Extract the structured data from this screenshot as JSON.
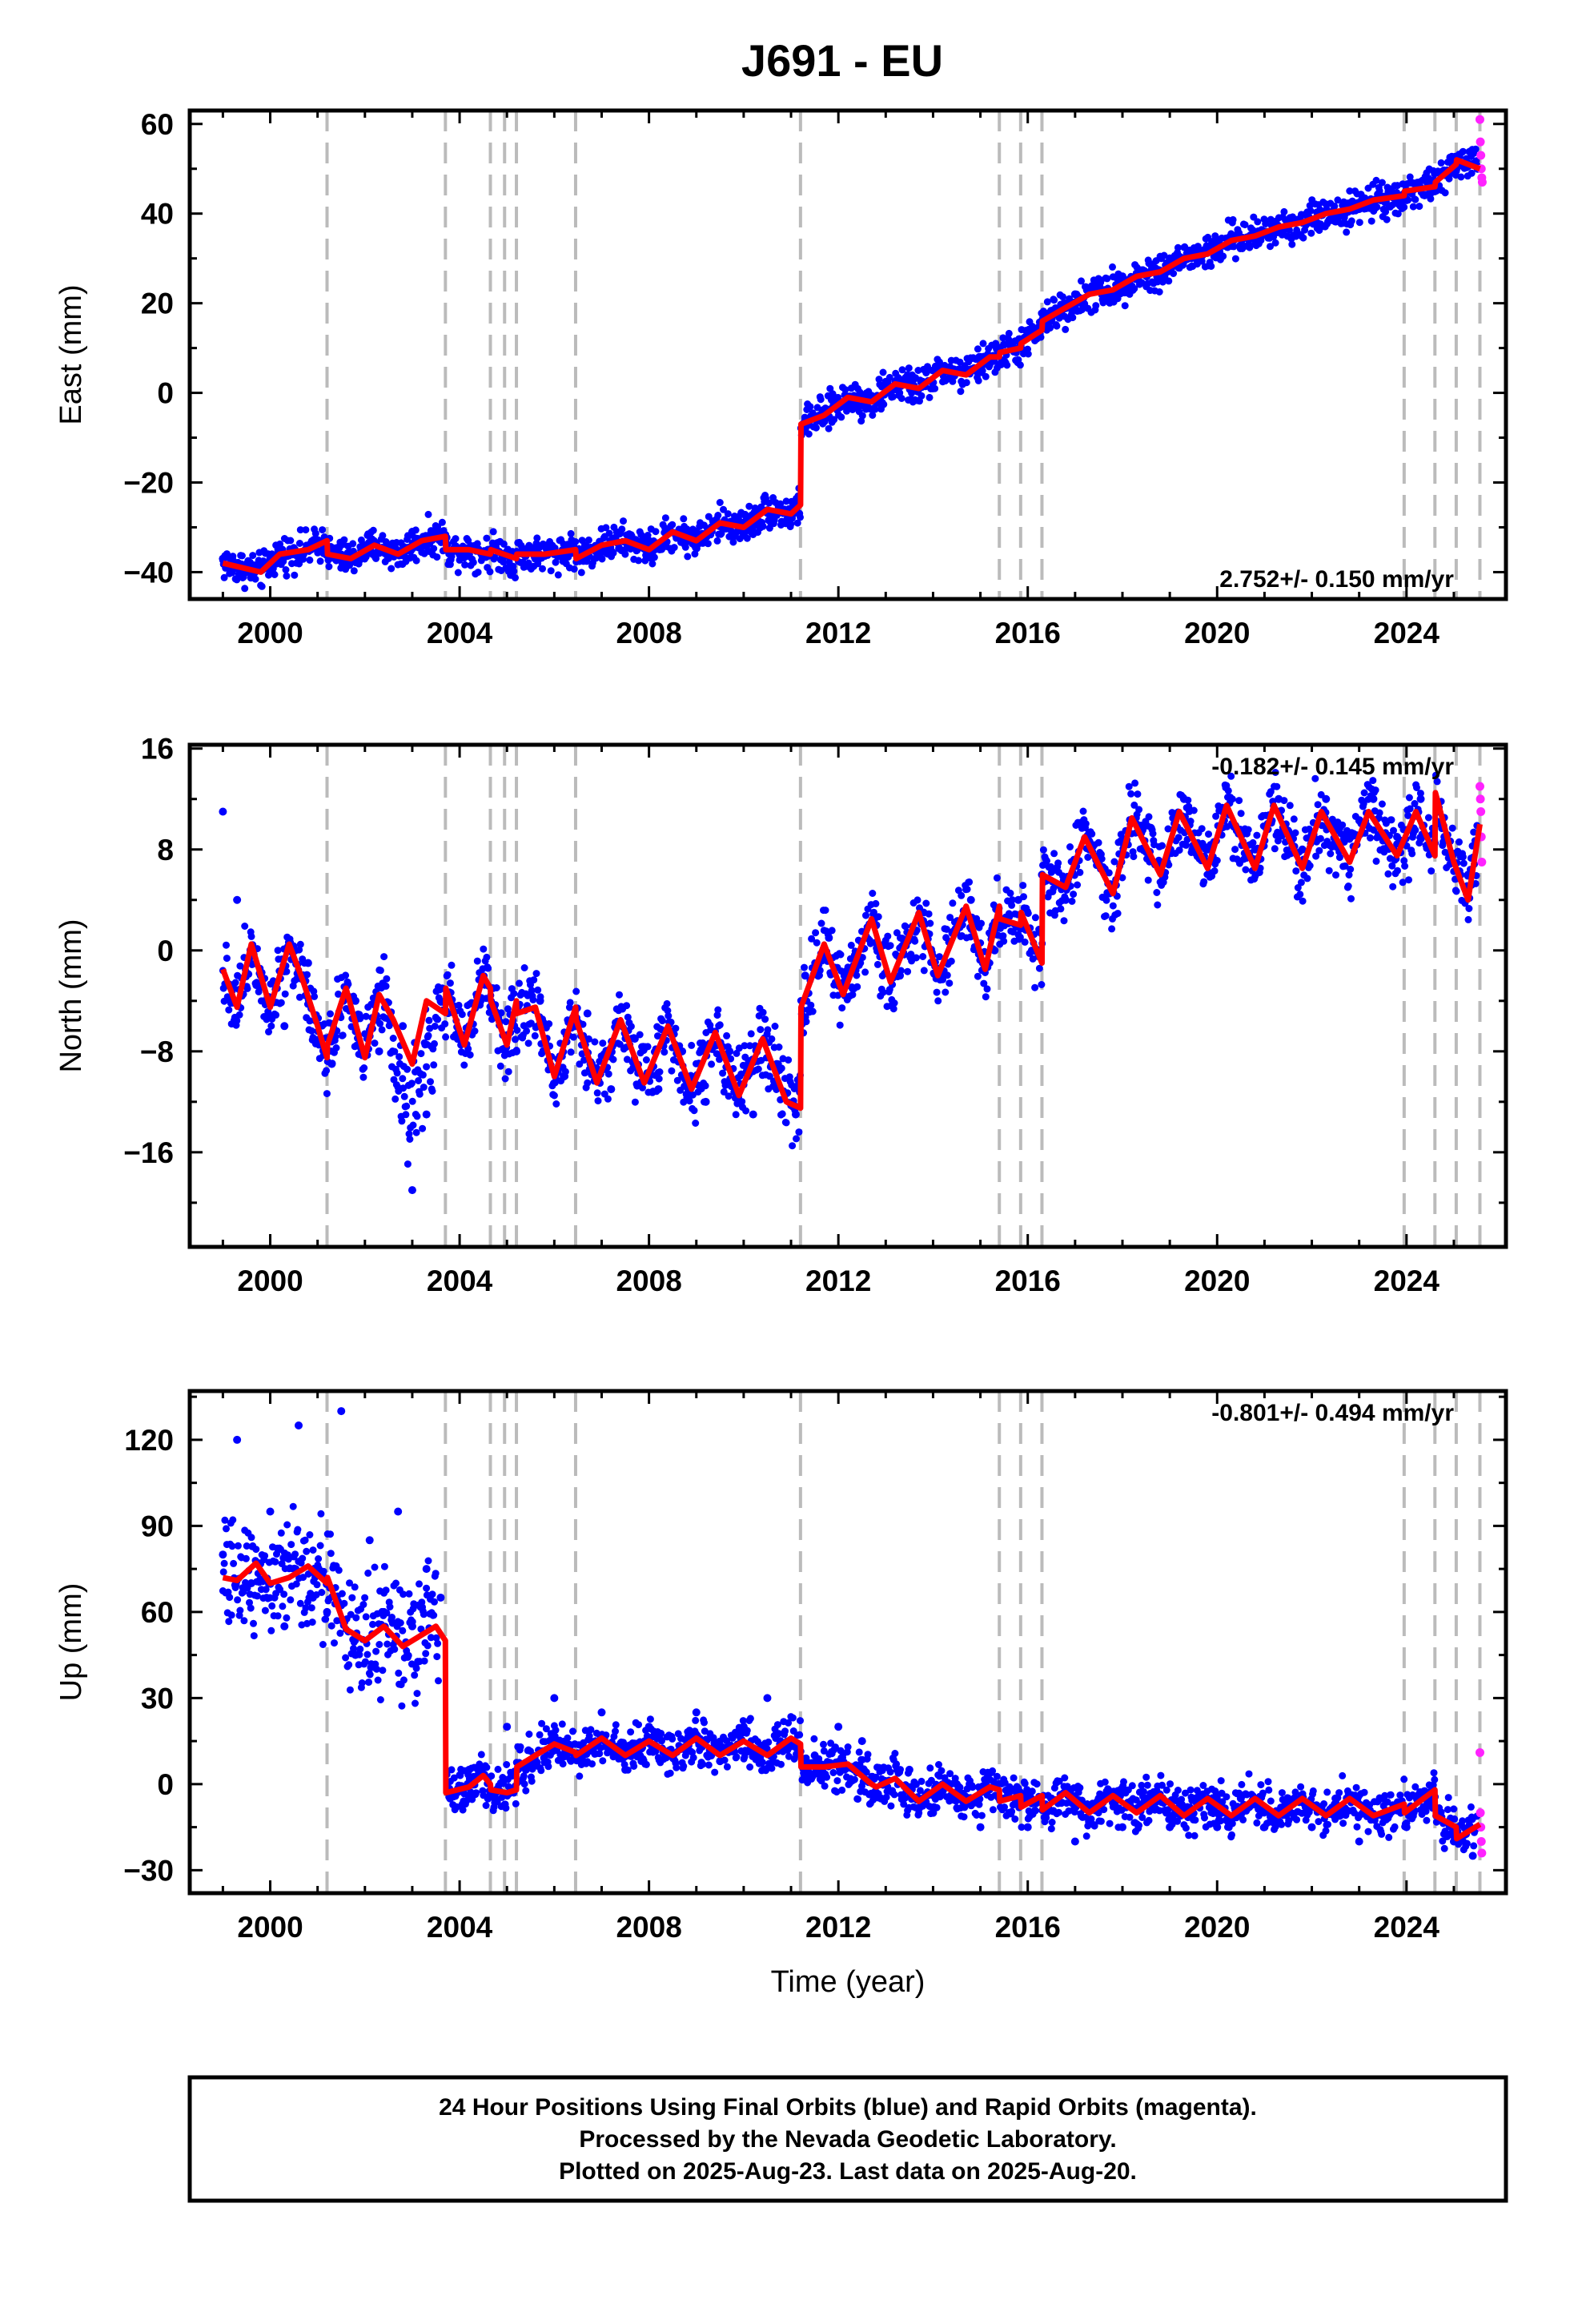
{
  "page": {
    "title": "J691 - EU"
  },
  "colors": {
    "final_points": "#0000ff",
    "rapid_points": "#ff22ff",
    "model": "#ff0000",
    "event_lines": "#bbbbbb",
    "frame": "#000000"
  },
  "footer": {
    "line1": "24 Hour Positions Using Final Orbits (blue) and Rapid Orbits (magenta).",
    "line2": "Processed by the Nevada Geodetic Laboratory.",
    "line3": "Plotted on 2025-Aug-23. Last data on 2025-Aug-20."
  },
  "chart_data": [
    {
      "type": "scatter",
      "component": "east",
      "title": "J691 - EU",
      "xlabel": "",
      "ylabel": "East (mm)",
      "xlim": [
        1998.3,
        2026.1
      ],
      "ylim": [
        -46,
        63
      ],
      "x_ticks": [
        2000,
        2004,
        2008,
        2012,
        2016,
        2020,
        2024
      ],
      "x_tick_labels": [
        "2000",
        "2004",
        "2008",
        "2012",
        "2016",
        "2020",
        "2024"
      ],
      "y_ticks": [
        -40,
        -20,
        0,
        20,
        40,
        60
      ],
      "y_tick_labels": [
        "−40",
        "−20",
        "0",
        "20",
        "40",
        "60"
      ],
      "rate_label": "2.752+/- 0.150 mm/yr",
      "rate_position": "bottom-right",
      "event_lines": [
        2001.2,
        2003.7,
        2004.65,
        2004.95,
        2005.2,
        2006.45,
        2011.2,
        2015.4,
        2015.85,
        2016.3,
        2023.95,
        2024.6,
        2025.05,
        2025.55
      ],
      "series": [
        {
          "role": "final",
          "style": "points",
          "x": [
            1999.0,
            1999.5,
            2000.0,
            2000.5,
            2001.0,
            2001.5,
            2002.0,
            2002.5,
            2003.0,
            2003.7,
            2004.0,
            2004.6,
            2005.0,
            2005.6,
            2006.0,
            2007.0,
            2008.0,
            2009.0,
            2010.0,
            2010.6,
            2011.1,
            2011.3,
            2012.0,
            2013.0,
            2014.0,
            2015.0,
            2015.8,
            2016.3,
            2017.0,
            2018.0,
            2019.0,
            2020.0,
            2021.0,
            2022.0,
            2023.0,
            2024.0,
            2024.6,
            2025.0,
            2025.5
          ],
          "y": [
            -37,
            -39,
            -37,
            -35,
            -33,
            -37,
            -34,
            -35,
            -31,
            -33,
            -36,
            -35,
            -36,
            -37,
            -36,
            -34,
            -33,
            -31,
            -29,
            -27,
            -25,
            -6,
            -2,
            2,
            5,
            8,
            10,
            15,
            22,
            26,
            30,
            34,
            36,
            38,
            41,
            43,
            45,
            51,
            50
          ]
        },
        {
          "role": "rapid",
          "style": "points",
          "x": [
            2025.55,
            2025.56,
            2025.57,
            2025.58,
            2025.59,
            2025.6
          ],
          "y": [
            61,
            56,
            53,
            50,
            48,
            47
          ]
        },
        {
          "role": "model",
          "style": "line",
          "x": [
            1999.0,
            1999.8,
            2000.2,
            2000.8,
            2001.2,
            2001.21,
            2001.7,
            2002.2,
            2002.7,
            2003.2,
            2003.7,
            2003.71,
            2004.2,
            2004.65,
            2004.66,
            2005.2,
            2005.21,
            2005.8,
            2006.45,
            2006.46,
            2007.0,
            2007.5,
            2008.0,
            2008.5,
            2009.0,
            2009.5,
            2010.0,
            2010.5,
            2011.0,
            2011.2,
            2011.21,
            2011.7,
            2012.2,
            2012.7,
            2013.2,
            2013.7,
            2014.2,
            2014.7,
            2015.2,
            2015.4,
            2015.41,
            2015.85,
            2015.86,
            2016.3,
            2016.31,
            2016.8,
            2017.3,
            2017.8,
            2018.3,
            2018.8,
            2019.3,
            2019.8,
            2020.3,
            2020.8,
            2021.3,
            2021.8,
            2022.3,
            2022.8,
            2023.3,
            2023.95,
            2023.96,
            2024.6,
            2024.61,
            2025.05,
            2025.06,
            2025.55
          ],
          "y": [
            -38,
            -40,
            -36,
            -35,
            -33,
            -36,
            -37,
            -34,
            -36,
            -33,
            -32,
            -35,
            -35,
            -36,
            -35,
            -37,
            -36,
            -36,
            -35,
            -37,
            -34,
            -33,
            -35,
            -31,
            -33,
            -29,
            -30,
            -26,
            -27,
            -25,
            -7,
            -5,
            -1,
            -2,
            2,
            1,
            5,
            4,
            8,
            8,
            9,
            10,
            11,
            14,
            16,
            19,
            22,
            23,
            26,
            27,
            30,
            31,
            34,
            35,
            37,
            38,
            40,
            41,
            43,
            44,
            45,
            46,
            47,
            51,
            52,
            50
          ]
        }
      ]
    },
    {
      "type": "scatter",
      "component": "north",
      "title": "",
      "xlabel": "",
      "ylabel": "North (mm)",
      "xlim": [
        1998.3,
        2026.1
      ],
      "ylim": [
        -23.5,
        16.3
      ],
      "x_ticks": [
        2000,
        2004,
        2008,
        2012,
        2016,
        2020,
        2024
      ],
      "x_tick_labels": [
        "2000",
        "2004",
        "2008",
        "2012",
        "2016",
        "2020",
        "2024"
      ],
      "y_ticks": [
        -16,
        -8,
        0,
        8,
        16
      ],
      "y_tick_labels": [
        "−16",
        "−8",
        "0",
        "8",
        "16"
      ],
      "rate_label": "-0.182+/- 0.145 mm/yr",
      "rate_position": "top-right",
      "event_lines": [
        2001.2,
        2003.7,
        2004.65,
        2004.95,
        2005.2,
        2006.45,
        2011.2,
        2015.4,
        2015.85,
        2016.3,
        2023.95,
        2024.6,
        2025.05,
        2025.55
      ],
      "series": [
        {
          "role": "final",
          "style": "points",
          "x": [
            1999.0,
            1999.3,
            1999.8,
            2000.3,
            2000.8,
            2001.3,
            2001.8,
            2002.3,
            2002.8,
            2003.0,
            2003.3,
            2003.7,
            2004.2,
            2004.7,
            2005.2,
            2005.7,
            2006.2,
            2006.7,
            2007.2,
            2007.7,
            2008.2,
            2008.7,
            2009.2,
            2009.7,
            2010.2,
            2010.7,
            2011.1,
            2011.3,
            2011.8,
            2012.3,
            2012.8,
            2013.3,
            2013.8,
            2014.3,
            2014.8,
            2015.3,
            2015.8,
            2016.3,
            2016.8,
            2017.3,
            2017.8,
            2018.3,
            2018.8,
            2019.3,
            2019.8,
            2020.3,
            2020.8,
            2021.3,
            2021.8,
            2022.3,
            2022.8,
            2023.3,
            2023.8,
            2024.3,
            2024.8,
            2025.3
          ],
          "y": [
            11,
            4,
            -2,
            -6,
            -1,
            -9,
            -4,
            -8,
            -6,
            -19,
            -13,
            -4,
            -6,
            -3,
            -8,
            -4,
            -10,
            -5,
            -11,
            -7,
            -11,
            -8,
            -12,
            -8,
            -13,
            -9,
            -13,
            -2,
            1,
            -3,
            2,
            -2,
            3,
            -1,
            4,
            0,
            4,
            6,
            4,
            8,
            5,
            10,
            7,
            12,
            8,
            12,
            8,
            12,
            8,
            12,
            9,
            12,
            9,
            12,
            9,
            6
          ]
        },
        {
          "role": "rapid",
          "style": "points",
          "x": [
            2025.55,
            2025.56,
            2025.57,
            2025.58,
            2025.59
          ],
          "y": [
            13,
            12,
            11,
            9,
            7
          ]
        },
        {
          "role": "model",
          "style": "line",
          "x": [
            1999.0,
            1999.3,
            1999.6,
            2000.0,
            2000.4,
            2000.7,
            2001.0,
            2001.2,
            2001.21,
            2001.6,
            2002.0,
            2002.3,
            2002.6,
            2003.0,
            2003.3,
            2003.7,
            2003.71,
            2004.1,
            2004.5,
            2004.65,
            2004.66,
            2005.0,
            2005.2,
            2005.21,
            2005.6,
            2006.0,
            2006.45,
            2006.46,
            2006.9,
            2007.4,
            2007.9,
            2008.4,
            2008.9,
            2009.4,
            2009.9,
            2010.4,
            2010.9,
            2011.2,
            2011.21,
            2011.7,
            2012.1,
            2012.7,
            2013.1,
            2013.7,
            2014.1,
            2014.7,
            2015.1,
            2015.4,
            2015.41,
            2015.85,
            2015.86,
            2016.3,
            2016.31,
            2016.8,
            2017.2,
            2017.8,
            2018.2,
            2018.8,
            2019.2,
            2019.8,
            2020.2,
            2020.8,
            2021.2,
            2021.8,
            2022.2,
            2022.8,
            2023.2,
            2023.8,
            2024.2,
            2024.6,
            2024.61,
            2025.0,
            2025.3,
            2025.55
          ],
          "y": [
            -1.5,
            -4.5,
            0.5,
            -4.5,
            0.5,
            -2.5,
            -6.0,
            -8.5,
            -7.5,
            -3.0,
            -8.5,
            -3.5,
            -5.5,
            -9.0,
            -4.0,
            -5.0,
            -3.0,
            -7.5,
            -2.0,
            -3.0,
            -4.0,
            -7.5,
            -4.0,
            -5.0,
            -4.5,
            -10.0,
            -4.5,
            -5.5,
            -10.5,
            -5.5,
            -10.5,
            -6.0,
            -11.0,
            -6.5,
            -11.5,
            -7.0,
            -12.0,
            -12.5,
            -4.5,
            0.5,
            -3.5,
            2.5,
            -2.5,
            3.0,
            -2.0,
            3.5,
            -1.5,
            3.5,
            2.5,
            2.0,
            3.0,
            -1.0,
            6.0,
            5.0,
            9.0,
            4.5,
            10.5,
            6.0,
            11.0,
            6.5,
            11.5,
            6.5,
            11.5,
            6.5,
            11.0,
            7.0,
            11.0,
            7.5,
            11.0,
            7.5,
            12.5,
            7.0,
            4.0,
            10.0
          ]
        }
      ]
    },
    {
      "type": "scatter",
      "component": "up",
      "title": "",
      "xlabel": "Time (year)",
      "ylabel": "Up (mm)",
      "xlim": [
        1998.3,
        2026.1
      ],
      "ylim": [
        -38,
        137
      ],
      "x_ticks": [
        2000,
        2004,
        2008,
        2012,
        2016,
        2020,
        2024
      ],
      "x_tick_labels": [
        "2000",
        "2004",
        "2008",
        "2012",
        "2016",
        "2020",
        "2024"
      ],
      "y_ticks": [
        -30,
        0,
        30,
        60,
        90,
        120
      ],
      "y_tick_labels": [
        "−30",
        "0",
        "30",
        "60",
        "90",
        "120"
      ],
      "rate_label": "-0.801+/- 0.494 mm/yr",
      "rate_position": "top-right",
      "event_lines": [
        2001.2,
        2003.7,
        2004.65,
        2004.95,
        2005.2,
        2006.45,
        2011.2,
        2015.4,
        2015.85,
        2016.3,
        2023.95,
        2024.6,
        2025.05,
        2025.55
      ],
      "series": [
        {
          "role": "final",
          "style": "points",
          "x": [
            1999.0,
            1999.3,
            1999.6,
            2000.0,
            2000.3,
            2000.6,
            2000.9,
            2001.2,
            2001.5,
            2001.8,
            2002.1,
            2002.4,
            2002.7,
            2003.0,
            2003.3,
            2003.6,
            2003.8,
            2004.2,
            2004.6,
            2005.0,
            2005.4,
            2006.0,
            2006.5,
            2007.0,
            2007.5,
            2008.0,
            2008.5,
            2009.0,
            2009.5,
            2010.0,
            2010.5,
            2011.0,
            2011.5,
            2012.0,
            2012.5,
            2012.9,
            2013.5,
            2014.0,
            2014.5,
            2015.0,
            2015.5,
            2016.0,
            2016.5,
            2017.0,
            2017.5,
            2018.0,
            2018.5,
            2019.0,
            2019.5,
            2020.0,
            2020.5,
            2021.0,
            2021.5,
            2022.0,
            2022.5,
            2023.0,
            2023.5,
            2024.0,
            2024.5,
            2025.0,
            2025.4
          ],
          "y": [
            80,
            120,
            70,
            95,
            55,
            125,
            65,
            60,
            130,
            45,
            85,
            60,
            95,
            55,
            75,
            65,
            -5,
            5,
            -5,
            20,
            5,
            30,
            10,
            25,
            5,
            20,
            10,
            25,
            8,
            20,
            30,
            15,
            10,
            20,
            15,
            -5,
            5,
            -10,
            0,
            -15,
            -5,
            -15,
            -5,
            -20,
            -5,
            -15,
            -5,
            -15,
            -5,
            -15,
            -5,
            -15,
            -5,
            -15,
            -5,
            -20,
            -5,
            -15,
            -5,
            -20,
            -25
          ]
        },
        {
          "role": "rapid",
          "style": "points",
          "x": [
            2025.55,
            2025.56,
            2025.57,
            2025.58,
            2025.59
          ],
          "y": [
            11,
            -10,
            -15,
            -20,
            -24
          ]
        },
        {
          "role": "model",
          "style": "line",
          "x": [
            1999.0,
            1999.3,
            1999.7,
            2000.0,
            2000.4,
            2000.8,
            2001.2,
            2001.21,
            2001.6,
            2002.0,
            2002.4,
            2002.8,
            2003.2,
            2003.5,
            2003.7,
            2003.71,
            2004.2,
            2004.5,
            2004.65,
            2004.66,
            2005.0,
            2005.2,
            2005.21,
            2005.6,
            2006.0,
            2006.45,
            2006.46,
            2007.0,
            2007.5,
            2008.0,
            2008.5,
            2009.0,
            2009.5,
            2010.0,
            2010.5,
            2011.0,
            2011.2,
            2011.21,
            2011.7,
            2012.2,
            2012.7,
            2012.8,
            2013.2,
            2013.7,
            2014.2,
            2014.7,
            2015.2,
            2015.4,
            2015.41,
            2015.85,
            2015.86,
            2016.3,
            2016.31,
            2016.8,
            2017.3,
            2017.8,
            2018.3,
            2018.8,
            2019.3,
            2019.8,
            2020.3,
            2020.8,
            2021.3,
            2021.8,
            2022.3,
            2022.8,
            2023.3,
            2023.95,
            2023.96,
            2024.6,
            2024.61,
            2025.05,
            2025.06,
            2025.55
          ],
          "y": [
            72,
            71,
            77,
            70,
            72,
            76,
            70,
            72,
            54,
            50,
            55,
            48,
            52,
            55,
            50,
            -3,
            -1,
            3,
            0,
            -2,
            -3,
            -2,
            6,
            10,
            14,
            11,
            10,
            16,
            10,
            15,
            10,
            16,
            10,
            15,
            10,
            16,
            14,
            6,
            6,
            7,
            0,
            -1,
            2,
            -6,
            0,
            -6,
            -1,
            -2,
            -6,
            -4,
            -8,
            -4,
            -9,
            -3,
            -10,
            -4,
            -10,
            -4,
            -11,
            -5,
            -11,
            -5,
            -11,
            -5,
            -11,
            -5,
            -11,
            -7,
            -10,
            -2,
            -11,
            -15,
            -19,
            -14
          ]
        }
      ]
    }
  ]
}
